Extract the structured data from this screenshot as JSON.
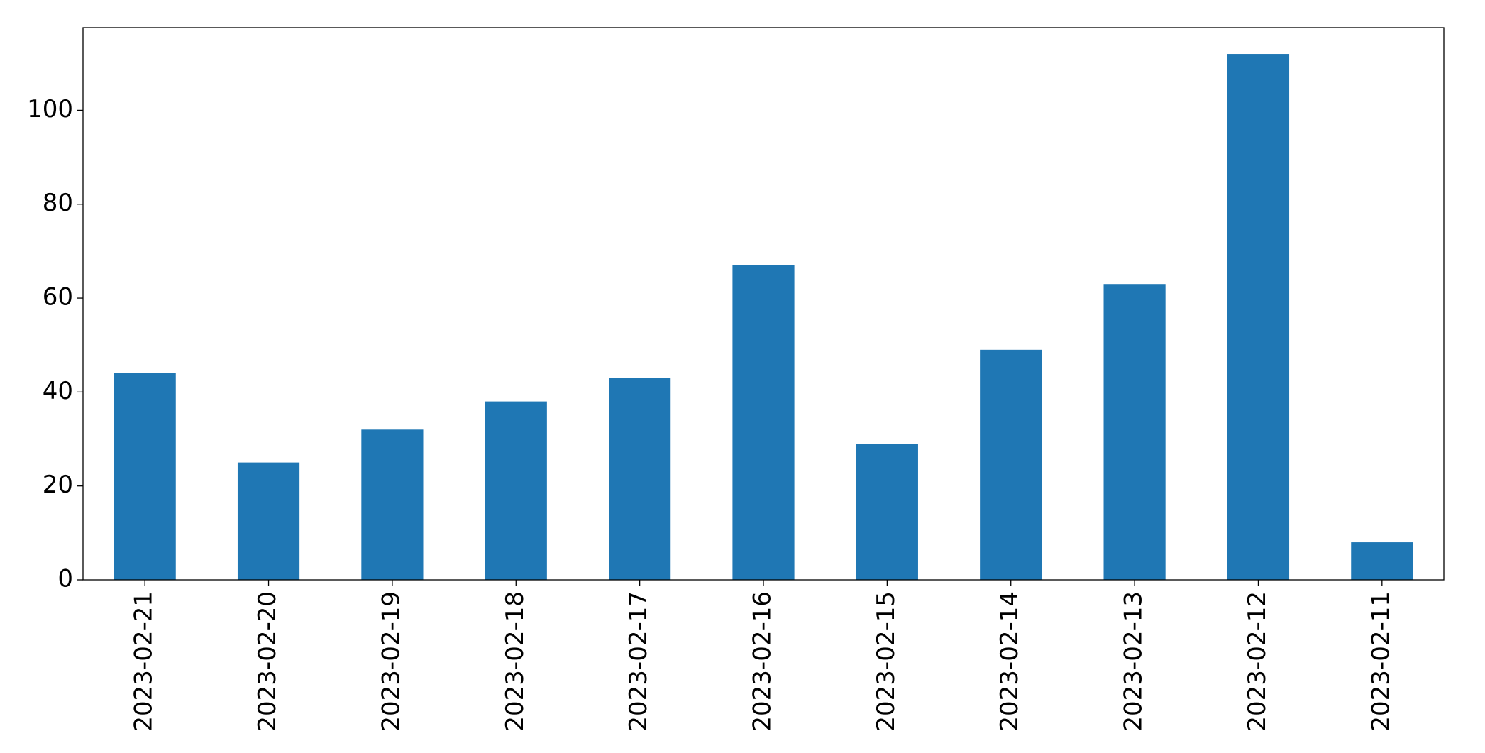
{
  "chart_data": {
    "type": "bar",
    "categories": [
      "2023-02-21",
      "2023-02-20",
      "2023-02-19",
      "2023-02-18",
      "2023-02-17",
      "2023-02-16",
      "2023-02-15",
      "2023-02-14",
      "2023-02-13",
      "2023-02-12",
      "2023-02-11"
    ],
    "values": [
      44,
      25,
      32,
      38,
      43,
      67,
      29,
      49,
      63,
      112,
      8
    ],
    "color": "#1f77b4",
    "ylim": [
      0,
      117.6
    ],
    "yticks": [
      0,
      20,
      40,
      60,
      80,
      100
    ],
    "grid": false
  }
}
